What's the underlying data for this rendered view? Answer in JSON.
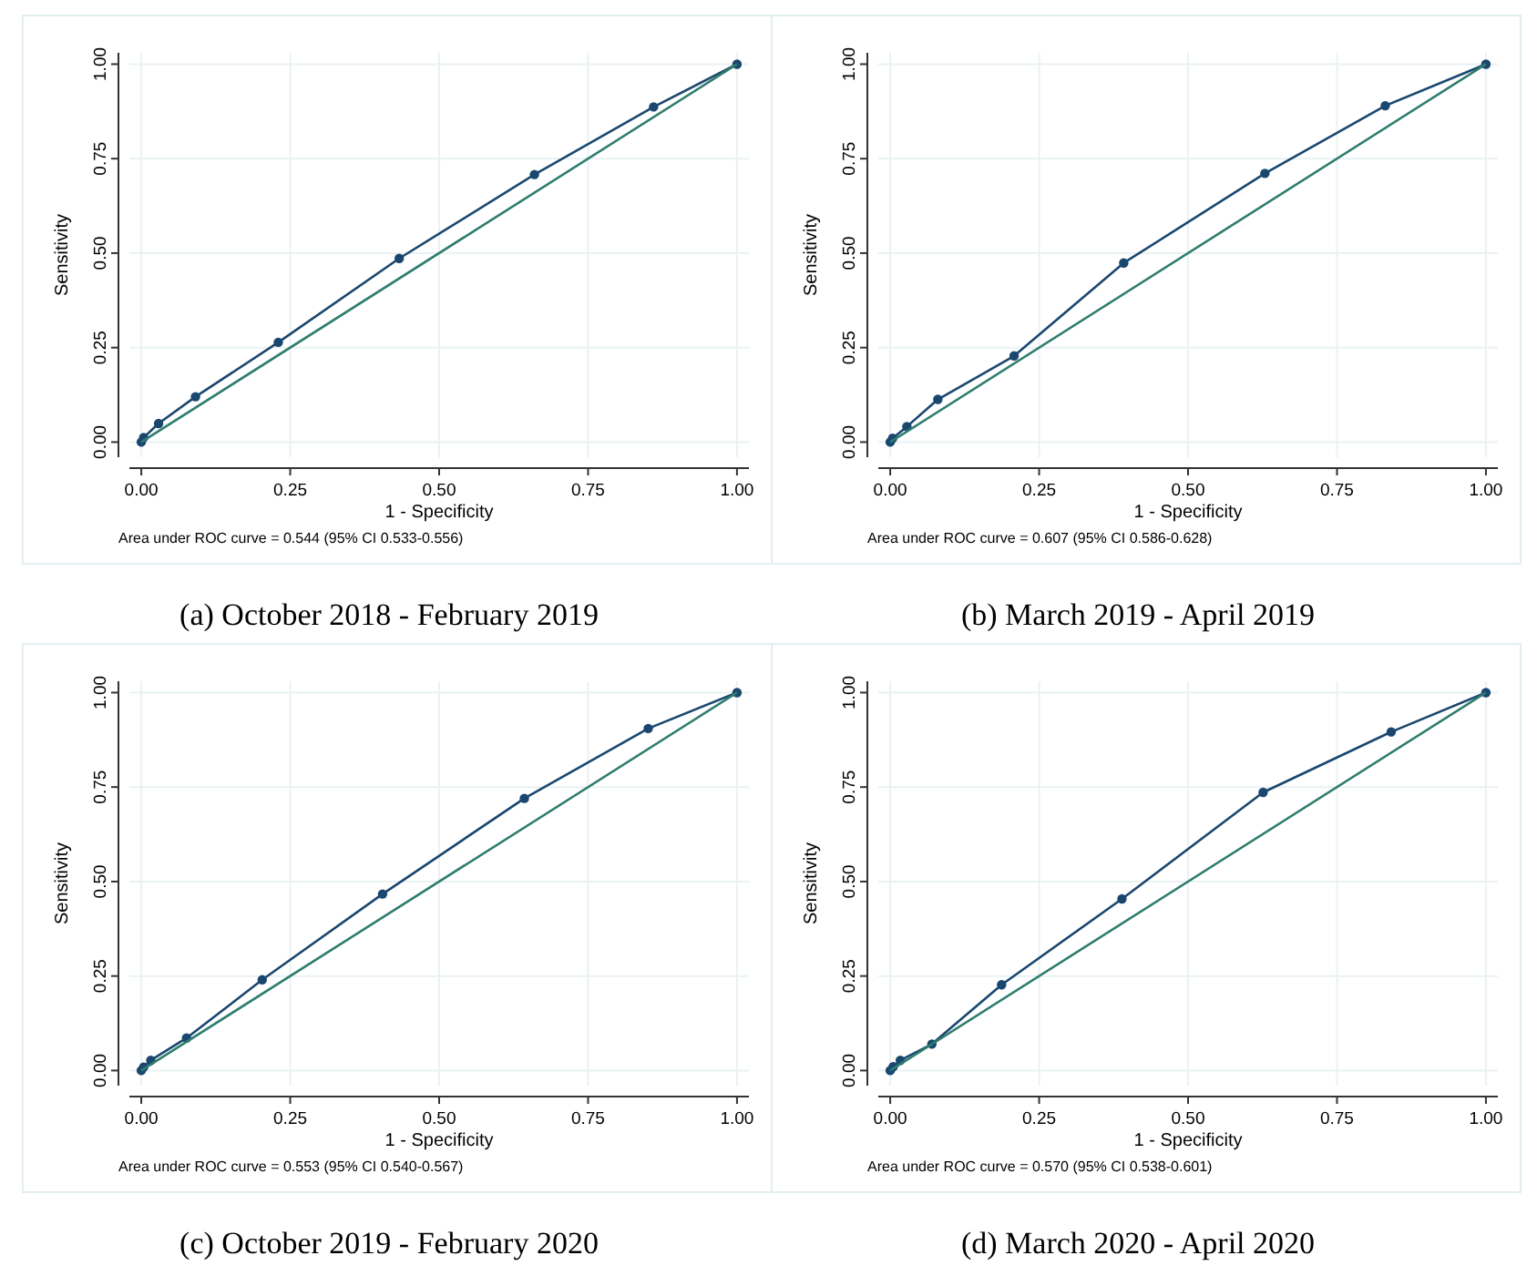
{
  "chart_data": [
    {
      "type": "line",
      "title": "(a) October 2018 - February 2019",
      "xlabel": "1 - Specificity",
      "ylabel": "Sensitivity",
      "annotations": [
        "Area under ROC curve = 0.544 (95% CI 0.533-0.556)"
      ],
      "xlim": [
        -0.02,
        1.02
      ],
      "ylim": [
        -0.04,
        1.03
      ],
      "xticks": [
        {
          "value": 0,
          "label": "0.00"
        },
        {
          "value": 0.25,
          "label": "0.25"
        },
        {
          "value": 0.5,
          "label": "0.50"
        },
        {
          "value": 0.75,
          "label": "0.75"
        },
        {
          "value": 1,
          "label": "1.00"
        }
      ],
      "yticks": [
        {
          "value": 0,
          "label": "0.00"
        },
        {
          "value": 0.25,
          "label": "0.25"
        },
        {
          "value": 0.5,
          "label": "0.50"
        },
        {
          "value": 0.75,
          "label": "0.75"
        },
        {
          "value": 1,
          "label": "1.00"
        }
      ],
      "grid": true,
      "series": [
        {
          "color": "#1a476f",
          "marker": "circle",
          "x": [
            0,
            0.004,
            0.029,
            0.091,
            0.23,
            0.433,
            0.66,
            0.86,
            1
          ],
          "values": [
            0,
            0.012,
            0.049,
            0.12,
            0.264,
            0.486,
            0.708,
            0.887,
            1
          ]
        },
        {
          "color": "#2e7d6e",
          "marker": "none",
          "x": [
            0,
            1
          ],
          "values": [
            0,
            1
          ]
        }
      ]
    },
    {
      "type": "line",
      "title": "(b) March 2019 - April 2019",
      "xlabel": "1 - Specificity",
      "ylabel": "Sensitivity",
      "annotations": [
        "Area under ROC curve = 0.607 (95% CI 0.586-0.628)"
      ],
      "xlim": [
        -0.02,
        1.02
      ],
      "ylim": [
        -0.04,
        1.03
      ],
      "xticks": [
        {
          "value": 0,
          "label": "0.00"
        },
        {
          "value": 0.25,
          "label": "0.25"
        },
        {
          "value": 0.5,
          "label": "0.50"
        },
        {
          "value": 0.75,
          "label": "0.75"
        },
        {
          "value": 1,
          "label": "1.00"
        }
      ],
      "yticks": [
        {
          "value": 0,
          "label": "0.00"
        },
        {
          "value": 0.25,
          "label": "0.25"
        },
        {
          "value": 0.5,
          "label": "0.50"
        },
        {
          "value": 0.75,
          "label": "0.75"
        },
        {
          "value": 1,
          "label": "1.00"
        }
      ],
      "grid": true,
      "series": [
        {
          "color": "#1a476f",
          "marker": "circle",
          "x": [
            0,
            0.004,
            0.028,
            0.08,
            0.208,
            0.392,
            0.629,
            0.831,
            1
          ],
          "values": [
            0,
            0.01,
            0.041,
            0.113,
            0.228,
            0.474,
            0.711,
            0.89,
            1
          ]
        },
        {
          "color": "#2e7d6e",
          "marker": "none",
          "x": [
            0,
            1
          ],
          "values": [
            0,
            1
          ]
        }
      ]
    },
    {
      "type": "line",
      "title": "(c) October 2019 - February 2020",
      "xlabel": "1 - Specificity",
      "ylabel": "Sensitivity",
      "annotations": [
        "Area under ROC curve = 0.553 (95% CI 0.540-0.567)"
      ],
      "xlim": [
        -0.02,
        1.02
      ],
      "ylim": [
        -0.04,
        1.03
      ],
      "xticks": [
        {
          "value": 0,
          "label": "0.00"
        },
        {
          "value": 0.25,
          "label": "0.25"
        },
        {
          "value": 0.5,
          "label": "0.50"
        },
        {
          "value": 0.75,
          "label": "0.75"
        },
        {
          "value": 1,
          "label": "1.00"
        }
      ],
      "yticks": [
        {
          "value": 0,
          "label": "0.00"
        },
        {
          "value": 0.25,
          "label": "0.25"
        },
        {
          "value": 0.5,
          "label": "0.50"
        },
        {
          "value": 0.75,
          "label": "0.75"
        },
        {
          "value": 1,
          "label": "1.00"
        }
      ],
      "grid": true,
      "series": [
        {
          "color": "#1a476f",
          "marker": "circle",
          "x": [
            0,
            0.004,
            0.016,
            0.076,
            0.203,
            0.405,
            0.643,
            0.851,
            1
          ],
          "values": [
            0,
            0.009,
            0.027,
            0.086,
            0.24,
            0.467,
            0.72,
            0.905,
            1
          ]
        },
        {
          "color": "#2e7d6e",
          "marker": "none",
          "x": [
            0,
            1
          ],
          "values": [
            0,
            1
          ]
        }
      ]
    },
    {
      "type": "line",
      "title": "(d) March 2020 - April 2020",
      "xlabel": "1 - Specificity",
      "ylabel": "Sensitivity",
      "annotations": [
        "Area under ROC curve = 0.570 (95% CI 0.538-0.601)"
      ],
      "xlim": [
        -0.02,
        1.02
      ],
      "ylim": [
        -0.04,
        1.03
      ],
      "xticks": [
        {
          "value": 0,
          "label": "0.00"
        },
        {
          "value": 0.25,
          "label": "0.25"
        },
        {
          "value": 0.5,
          "label": "0.50"
        },
        {
          "value": 0.75,
          "label": "0.75"
        },
        {
          "value": 1,
          "label": "1.00"
        }
      ],
      "yticks": [
        {
          "value": 0,
          "label": "0.00"
        },
        {
          "value": 0.25,
          "label": "0.25"
        },
        {
          "value": 0.5,
          "label": "0.50"
        },
        {
          "value": 0.75,
          "label": "0.75"
        },
        {
          "value": 1,
          "label": "1.00"
        }
      ],
      "grid": true,
      "series": [
        {
          "color": "#1a476f",
          "marker": "circle",
          "x": [
            0,
            0.005,
            0.017,
            0.07,
            0.187,
            0.389,
            0.626,
            0.841,
            1
          ],
          "values": [
            0,
            0.01,
            0.027,
            0.07,
            0.227,
            0.454,
            0.736,
            0.896,
            1
          ]
        },
        {
          "color": "#2e7d6e",
          "marker": "none",
          "x": [
            0,
            1
          ],
          "values": [
            0,
            1
          ]
        }
      ]
    }
  ]
}
